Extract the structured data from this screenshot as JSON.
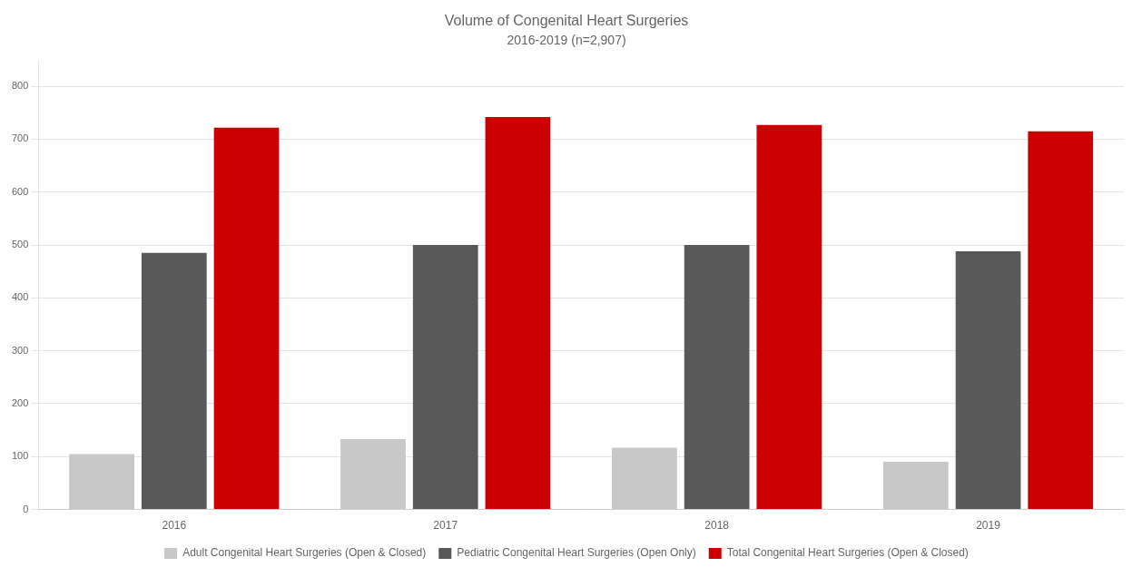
{
  "chart_data": {
    "type": "bar",
    "title": "Volume of Congenital Heart Surgeries",
    "subtitle": "2016-2019 (n=2,907)",
    "categories": [
      "2016",
      "2017",
      "2018",
      "2019"
    ],
    "series": [
      {
        "name": "Adult Congenital Heart Surgeries (Open & Closed)",
        "color": "#c8c8c8",
        "values": [
          105,
          133,
          117,
          90
        ]
      },
      {
        "name": "Pediatric Congenital Heart Surgeries (Open Only)",
        "color": "#595959",
        "values": [
          485,
          500,
          500,
          488
        ]
      },
      {
        "name": "Total Congenital Heart Surgeries (Open & Closed)",
        "color": "#cc0000",
        "values": [
          722,
          742,
          727,
          715
        ]
      }
    ],
    "ylim": [
      0,
      850
    ],
    "yticks": [
      0,
      100,
      200,
      300,
      400,
      500,
      600,
      700,
      800
    ],
    "grid": true,
    "legend": "bottom"
  }
}
